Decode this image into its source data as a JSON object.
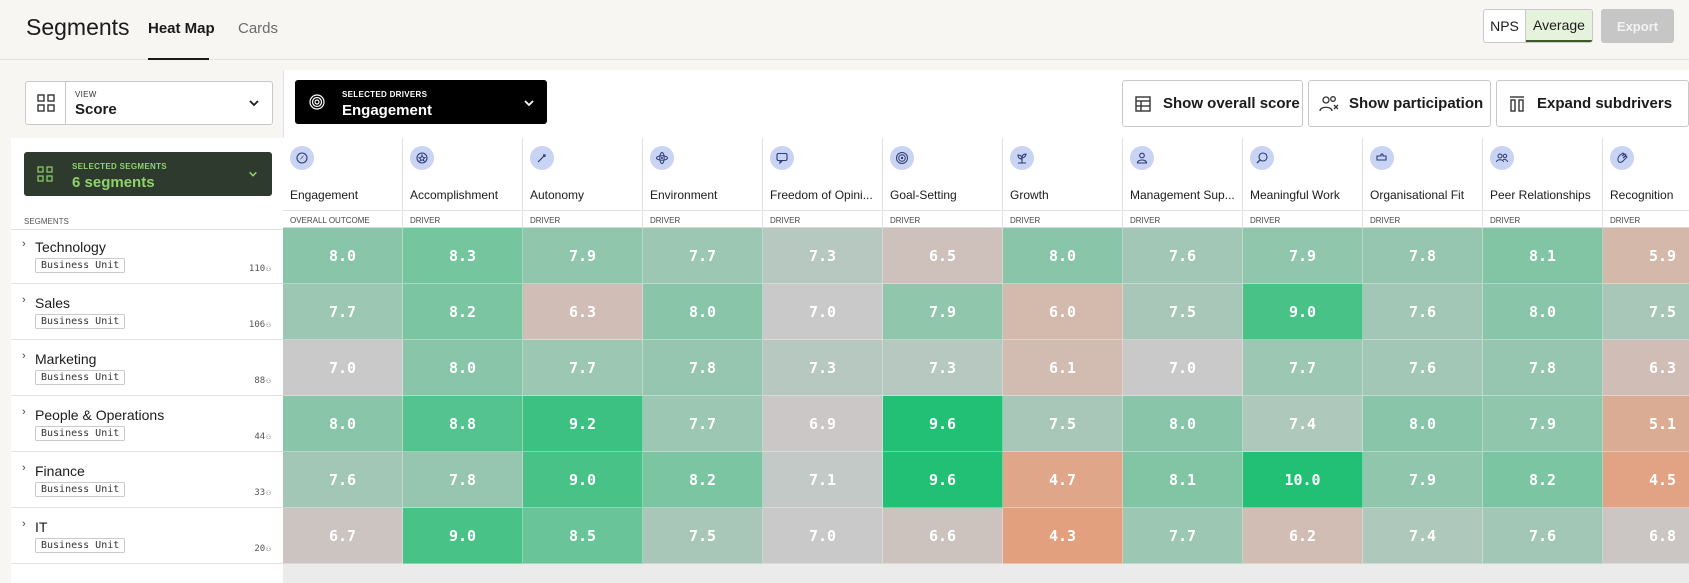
{
  "header": {
    "title": "Segments",
    "tabs": [
      {
        "label": "Heat Map",
        "active": true
      },
      {
        "label": "Cards",
        "active": false
      }
    ],
    "toggle": {
      "nps": "NPS",
      "average": "Average",
      "selected": "Average"
    },
    "export_label": "Export"
  },
  "view": {
    "caption": "VIEW",
    "value": "Score"
  },
  "selected_segments": {
    "caption": "SELECTED SEGMENTS",
    "value": "6 segments"
  },
  "selected_drivers": {
    "caption": "SELECTED DRIVERS",
    "value": "Engagement"
  },
  "actions": {
    "overall_score": "Show overall score",
    "participation": "Show participation",
    "expand": "Expand subdrivers"
  },
  "segments_label": "SEGMENTS",
  "columns": [
    {
      "name": "Engagement",
      "type": "OVERALL OUTCOME",
      "icon": "compass-icon"
    },
    {
      "name": "Accomplishment",
      "type": "DRIVER",
      "icon": "star-badge-icon"
    },
    {
      "name": "Autonomy",
      "type": "DRIVER",
      "icon": "rocket-icon"
    },
    {
      "name": "Environment",
      "type": "DRIVER",
      "icon": "atom-icon"
    },
    {
      "name": "Freedom of Opini...",
      "type": "DRIVER",
      "icon": "speech-bubble-icon"
    },
    {
      "name": "Goal-Setting",
      "type": "DRIVER",
      "icon": "target-icon"
    },
    {
      "name": "Growth",
      "type": "DRIVER",
      "icon": "sprout-icon"
    },
    {
      "name": "Management Sup...",
      "type": "DRIVER",
      "icon": "person-icon"
    },
    {
      "name": "Meaningful Work",
      "type": "DRIVER",
      "icon": "search-heart-icon"
    },
    {
      "name": "Organisational Fit",
      "type": "DRIVER",
      "icon": "puzzle-icon"
    },
    {
      "name": "Peer Relationships",
      "type": "DRIVER",
      "icon": "people-icon"
    },
    {
      "name": "Recognition",
      "type": "DRIVER",
      "icon": "clap-icon"
    }
  ],
  "rows": [
    {
      "name": "Technology",
      "badge": "Business Unit",
      "count": "110",
      "values": [
        "8.0",
        "8.3",
        "7.9",
        "7.7",
        "7.3",
        "6.5",
        "8.0",
        "7.6",
        "7.9",
        "7.8",
        "8.1",
        "5.9"
      ]
    },
    {
      "name": "Sales",
      "badge": "Business Unit",
      "count": "106",
      "values": [
        "7.7",
        "8.2",
        "6.3",
        "8.0",
        "7.0",
        "7.9",
        "6.0",
        "7.5",
        "9.0",
        "7.6",
        "8.0",
        "7.5"
      ]
    },
    {
      "name": "Marketing",
      "badge": "Business Unit",
      "count": "88",
      "values": [
        "7.0",
        "8.0",
        "7.7",
        "7.8",
        "7.3",
        "7.3",
        "6.1",
        "7.0",
        "7.7",
        "7.6",
        "7.8",
        "6.3"
      ]
    },
    {
      "name": "People & Operations",
      "badge": "Business Unit",
      "count": "44",
      "values": [
        "8.0",
        "8.8",
        "9.2",
        "7.7",
        "6.9",
        "9.6",
        "7.5",
        "8.0",
        "7.4",
        "8.0",
        "7.9",
        "5.1"
      ]
    },
    {
      "name": "Finance",
      "badge": "Business Unit",
      "count": "33",
      "values": [
        "7.6",
        "7.8",
        "9.0",
        "8.2",
        "7.1",
        "9.6",
        "4.7",
        "8.1",
        "10.0",
        "7.9",
        "8.2",
        "4.5"
      ]
    },
    {
      "name": "IT",
      "badge": "Business Unit",
      "count": "20",
      "values": [
        "6.7",
        "9.0",
        "8.5",
        "7.5",
        "7.0",
        "6.6",
        "4.3",
        "7.7",
        "6.2",
        "7.4",
        "7.6",
        "6.8"
      ]
    }
  ],
  "colors": {
    "high": "#22c075",
    "mid_green": "#7fcaa2",
    "neutral": "#c9c9c9",
    "low": "#e3a07e",
    "accent_green": "#8fd36a"
  }
}
